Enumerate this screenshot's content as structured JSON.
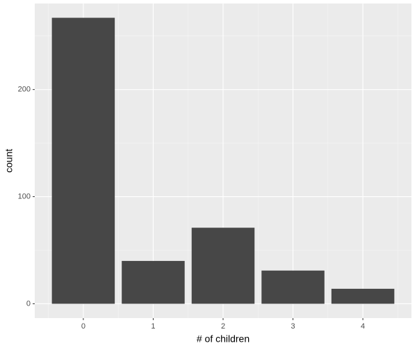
{
  "chart_data": {
    "type": "bar",
    "x_label": "# of children",
    "y_label": "count",
    "x": [
      0,
      1,
      2,
      3,
      4
    ],
    "values": [
      267,
      40,
      71,
      31,
      14
    ],
    "color": "#474747",
    "xlim": [
      -0.695,
      4.695
    ],
    "xticks": [
      0,
      1,
      2,
      3,
      4
    ],
    "ylim": [
      -13.35,
      280.35
    ],
    "yticks": [
      0,
      100,
      200
    ],
    "grid": true
  }
}
